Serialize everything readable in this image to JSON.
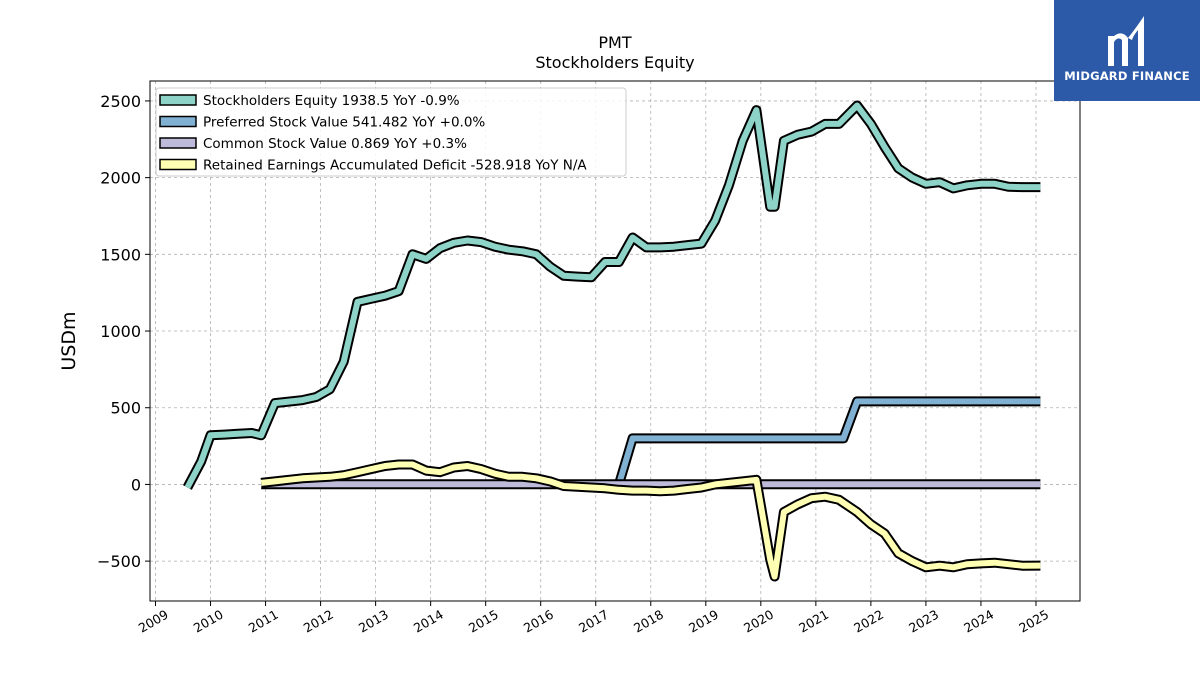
{
  "chart_data": {
    "type": "line",
    "title": "PMT",
    "subtitle": "Stockholders  Equity",
    "ylabel": "USDm",
    "xlabel": "",
    "xlim": [
      2008.9,
      2025.8
    ],
    "ylim": [
      -760,
      2630
    ],
    "yticks": [
      -500,
      0,
      500,
      1000,
      1500,
      2000,
      2500
    ],
    "ytick_labels": [
      "−500",
      "0",
      "500",
      "1000",
      "1500",
      "2000",
      "2500"
    ],
    "xticks": [
      2009,
      2010,
      2011,
      2012,
      2013,
      2014,
      2015,
      2016,
      2017,
      2018,
      2019,
      2020,
      2021,
      2022,
      2023,
      2024,
      2025
    ],
    "xtick_labels": [
      "2009",
      "2010",
      "2011",
      "2012",
      "2013",
      "2014",
      "2015",
      "2016",
      "2017",
      "2018",
      "2019",
      "2020",
      "2021",
      "2022",
      "2023",
      "2024",
      "2025"
    ],
    "grid": true,
    "legend_position": "top-left",
    "series": [
      {
        "name": "Stockholders Equity  1938.5 YoY -0.9%",
        "color": "#8dd3c7",
        "x": [
          2009.58,
          2009.83,
          2010.0,
          2010.25,
          2010.5,
          2010.75,
          2010.92,
          2011.17,
          2011.42,
          2011.67,
          2011.92,
          2012.17,
          2012.42,
          2012.67,
          2012.92,
          2013.17,
          2013.42,
          2013.67,
          2013.92,
          2014.17,
          2014.42,
          2014.67,
          2014.92,
          2015.17,
          2015.42,
          2015.67,
          2015.92,
          2016.17,
          2016.42,
          2016.67,
          2016.92,
          2017.17,
          2017.42,
          2017.67,
          2017.92,
          2018.17,
          2018.42,
          2018.67,
          2018.92,
          2019.17,
          2019.42,
          2019.67,
          2019.92,
          2020.17,
          2020.25,
          2020.42,
          2020.67,
          2020.92,
          2021.17,
          2021.42,
          2021.75,
          2022.0,
          2022.25,
          2022.5,
          2022.75,
          2023.0,
          2023.25,
          2023.5,
          2023.75,
          2024.0,
          2024.25,
          2024.5,
          2024.75,
          2025.08
        ],
        "values": [
          -20,
          150,
          320,
          325,
          330,
          335,
          320,
          530,
          540,
          550,
          570,
          620,
          800,
          1190,
          1210,
          1230,
          1260,
          1500,
          1470,
          1540,
          1575,
          1590,
          1580,
          1550,
          1530,
          1520,
          1500,
          1420,
          1360,
          1355,
          1350,
          1450,
          1450,
          1610,
          1545,
          1545,
          1550,
          1560,
          1570,
          1720,
          1950,
          2240,
          2440,
          1810,
          1810,
          2240,
          2280,
          2300,
          2350,
          2350,
          2470,
          2350,
          2200,
          2060,
          2000,
          1960,
          1970,
          1930,
          1950,
          1960,
          1960,
          1940,
          1938,
          1938.5
        ]
      },
      {
        "name": "Preferred Stock Value  541.482 YoY +0.0%",
        "color": "#80b1d3",
        "x": [
          2017.42,
          2017.67,
          2021.5,
          2021.75,
          2025.08
        ],
        "values": [
          0,
          300,
          300,
          541.482,
          541.482
        ]
      },
      {
        "name": "Common Stock Value  0.869 YoY +0.3%",
        "color": "#bebada",
        "x": [
          2010.92,
          2025.08
        ],
        "values": [
          0.8,
          0.869
        ]
      },
      {
        "name": "Retained Earnings Accumulated Deficit  -528.918 YoY N/A",
        "color": "#ffffb3",
        "x": [
          2010.92,
          2011.17,
          2011.42,
          2011.67,
          2011.92,
          2012.17,
          2012.42,
          2012.67,
          2012.92,
          2013.17,
          2013.42,
          2013.67,
          2013.92,
          2014.17,
          2014.42,
          2014.67,
          2014.92,
          2015.17,
          2015.42,
          2015.67,
          2015.92,
          2016.17,
          2016.42,
          2016.67,
          2016.92,
          2017.17,
          2017.42,
          2017.67,
          2017.92,
          2018.17,
          2018.42,
          2018.67,
          2018.92,
          2019.17,
          2019.42,
          2019.67,
          2019.92,
          2020.17,
          2020.25,
          2020.42,
          2020.67,
          2020.92,
          2021.17,
          2021.42,
          2021.75,
          2022.0,
          2022.25,
          2022.5,
          2022.75,
          2023.0,
          2023.25,
          2023.5,
          2023.75,
          2024.0,
          2024.25,
          2024.5,
          2024.75,
          2025.08
        ],
        "values": [
          10,
          20,
          30,
          40,
          45,
          50,
          60,
          80,
          100,
          120,
          130,
          130,
          90,
          80,
          110,
          120,
          100,
          70,
          50,
          50,
          40,
          20,
          -10,
          -15,
          -20,
          -25,
          -35,
          -40,
          -40,
          -45,
          -40,
          -30,
          -20,
          0,
          10,
          20,
          30,
          -490,
          -600,
          -180,
          -130,
          -90,
          -80,
          -100,
          -180,
          -260,
          -320,
          -450,
          -500,
          -540,
          -530,
          -540,
          -520,
          -515,
          -510,
          -520,
          -530,
          -528.918
        ]
      }
    ]
  },
  "logo": {
    "text": "MIDGARD FINANCE"
  }
}
